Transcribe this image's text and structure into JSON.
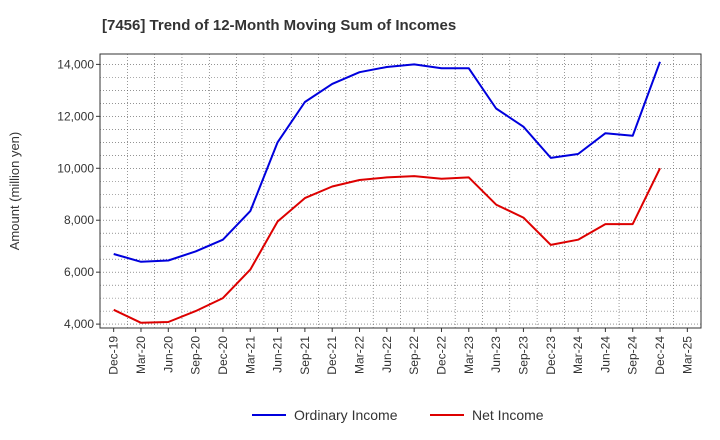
{
  "chart_data": {
    "type": "line",
    "title": "[7456]  Trend of 12-Month Moving Sum of Incomes",
    "ylabel": "Amount (million yen)",
    "xlabel": "",
    "ylim": [
      3850,
      14400
    ],
    "yticks": [
      4000,
      6000,
      8000,
      10000,
      12000,
      14000
    ],
    "ytick_labels": [
      "4,000",
      "6,000",
      "8,000",
      "10,000",
      "12,000",
      "14,000"
    ],
    "categories": [
      "Dec-19",
      "Mar-20",
      "Jun-20",
      "Sep-20",
      "Dec-20",
      "Mar-21",
      "Jun-21",
      "Sep-21",
      "Dec-21",
      "Mar-22",
      "Jun-22",
      "Sep-22",
      "Dec-22",
      "Mar-23",
      "Jun-23",
      "Sep-23",
      "Dec-23",
      "Mar-24",
      "Jun-24",
      "Sep-24",
      "Dec-24",
      "Mar-25"
    ],
    "grid": true,
    "legend_position": "bottom",
    "series": [
      {
        "name": "Ordinary Income",
        "color": "#0000dd",
        "values": [
          6700,
          6400,
          6450,
          6800,
          7250,
          8350,
          11000,
          12550,
          13250,
          13700,
          13900,
          14000,
          13850,
          13850,
          12300,
          11600,
          10400,
          10550,
          11350,
          11250,
          14100,
          null
        ]
      },
      {
        "name": "Net Income",
        "color": "#dd0000",
        "values": [
          4550,
          4050,
          4080,
          4500,
          5000,
          6100,
          7950,
          8850,
          9300,
          9550,
          9650,
          9700,
          9600,
          9650,
          8600,
          8100,
          7050,
          7250,
          7850,
          7850,
          10000,
          null
        ]
      }
    ]
  }
}
